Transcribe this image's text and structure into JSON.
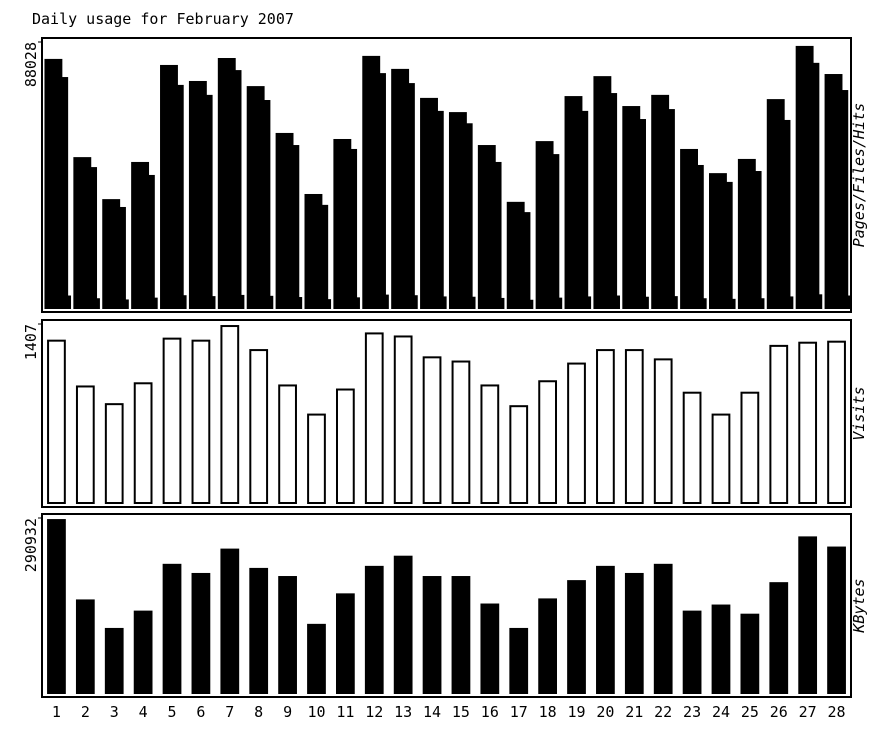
{
  "title": "Daily usage for February 2007",
  "chart_data": [
    {
      "type": "bar",
      "y_label": "Pages/Files/Hits",
      "ylim": [
        0,
        88028
      ],
      "yticks": [
        88028
      ],
      "series": [
        {
          "color": "#000000",
          "values": [
            82100,
            49600,
            35700,
            48000,
            80100,
            74800,
            82400,
            73100,
            57600,
            37400,
            55600,
            83100,
            78800,
            69200,
            64500,
            53600,
            34800,
            54900,
            69800,
            76400,
            66500,
            70200,
            52300,
            44300,
            49000,
            68800,
            86400,
            77100
          ]
        },
        {
          "color": "#000000",
          "values": [
            76100,
            46300,
            33100,
            43700,
            73500,
            70200,
            78400,
            68500,
            53600,
            33800,
            52300,
            77400,
            74100,
            64900,
            60800,
            48000,
            31400,
            50600,
            64900,
            70800,
            62200,
            65500,
            47000,
            41400,
            45000,
            61900,
            80800,
            71800
          ]
        },
        {
          "color": "#000000",
          "values": [
            3800,
            2900,
            2500,
            3100,
            3900,
            3600,
            4000,
            3700,
            3300,
            2600,
            3200,
            4100,
            3900,
            3500,
            3400,
            3000,
            2400,
            3100,
            3500,
            3800,
            3400,
            3600,
            2900,
            2700,
            2900,
            3500,
            4200,
            3800
          ]
        }
      ]
    },
    {
      "type": "bar",
      "y_label": "Visits",
      "ylim": [
        0,
        1407
      ],
      "yticks": [
        1407
      ],
      "series": [
        {
          "color": "#ffffff",
          "values": [
            1276,
            916,
            777,
            941,
            1292,
            1276,
            1391,
            1202,
            924,
            695,
            892,
            1333,
            1309,
            1145,
            1112,
            924,
            761,
            957,
            1096,
            1202,
            1202,
            1129,
            867,
            695,
            867,
            1235,
            1260,
            1268
          ]
        }
      ]
    },
    {
      "type": "bar",
      "y_label": "KBytes",
      "ylim": [
        0,
        290932
      ],
      "yticks": [
        290932
      ],
      "categories": [
        "1",
        "2",
        "3",
        "4",
        "5",
        "6",
        "7",
        "8",
        "9",
        "10",
        "11",
        "12",
        "13",
        "14",
        "15",
        "16",
        "17",
        "18",
        "19",
        "20",
        "21",
        "22",
        "23",
        "24",
        "25",
        "26",
        "27",
        "28"
      ],
      "series": [
        {
          "color": "#000000",
          "values": [
            287500,
            153900,
            106500,
            135300,
            213100,
            197900,
            238400,
            206300,
            192800,
            113300,
            164000,
            209700,
            226600,
            192800,
            192800,
            147100,
            106500,
            155600,
            186000,
            209700,
            197900,
            213100,
            135300,
            145400,
            130200,
            182600,
            258700,
            241800
          ]
        }
      ]
    }
  ]
}
